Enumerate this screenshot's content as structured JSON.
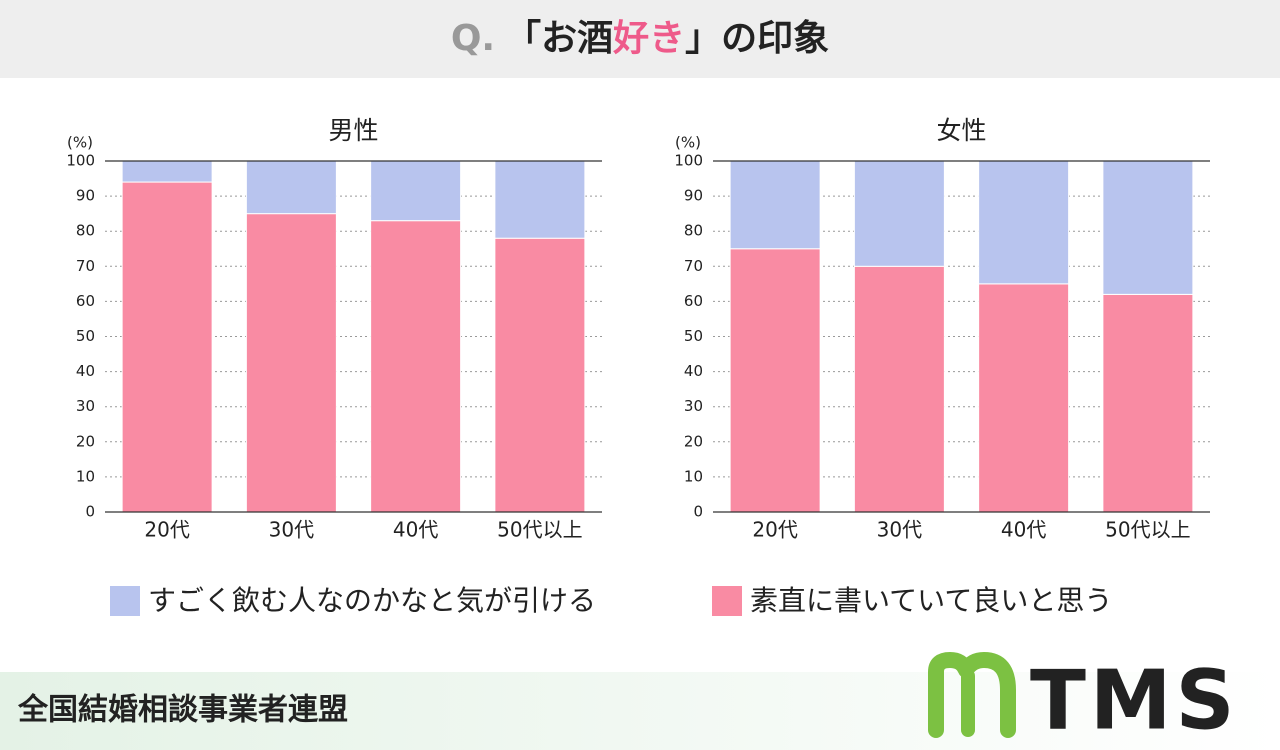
{
  "header": {
    "q": "Q.",
    "text_before": "「お酒",
    "highlight": "好き",
    "text_after": "」の印象"
  },
  "chart_data": [
    {
      "type": "stacked_bar",
      "title": "男性",
      "ylabel": "(%)",
      "categories": [
        "20代",
        "30代",
        "40代",
        "50代以上"
      ],
      "series": [
        {
          "name": "すごく飲む人なのかなと気が引ける",
          "color": "#b8c4ee",
          "values": [
            6,
            15,
            17,
            22
          ]
        },
        {
          "name": "素直に書いていて良いと思う",
          "color": "#f98ba3",
          "values": [
            94,
            85,
            83,
            78
          ]
        }
      ],
      "ylim": [
        0,
        100
      ],
      "yticks": [
        0,
        10,
        20,
        30,
        40,
        50,
        60,
        70,
        80,
        90,
        100
      ],
      "grid": true
    },
    {
      "type": "stacked_bar",
      "title": "女性",
      "ylabel": "(%)",
      "categories": [
        "20代",
        "30代",
        "40代",
        "50代以上"
      ],
      "series": [
        {
          "name": "すごく飲む人なのかなと気が引ける",
          "color": "#b8c4ee",
          "values": [
            25,
            30,
            35,
            38
          ]
        },
        {
          "name": "素直に書いていて良いと思う",
          "color": "#f98ba3",
          "values": [
            75,
            70,
            65,
            62
          ]
        }
      ],
      "ylim": [
        0,
        100
      ],
      "yticks": [
        0,
        10,
        20,
        30,
        40,
        50,
        60,
        70,
        80,
        90,
        100
      ],
      "grid": true
    }
  ],
  "footer": {
    "organization": "全国結婚相談事業者連盟",
    "logo": "TMS"
  }
}
